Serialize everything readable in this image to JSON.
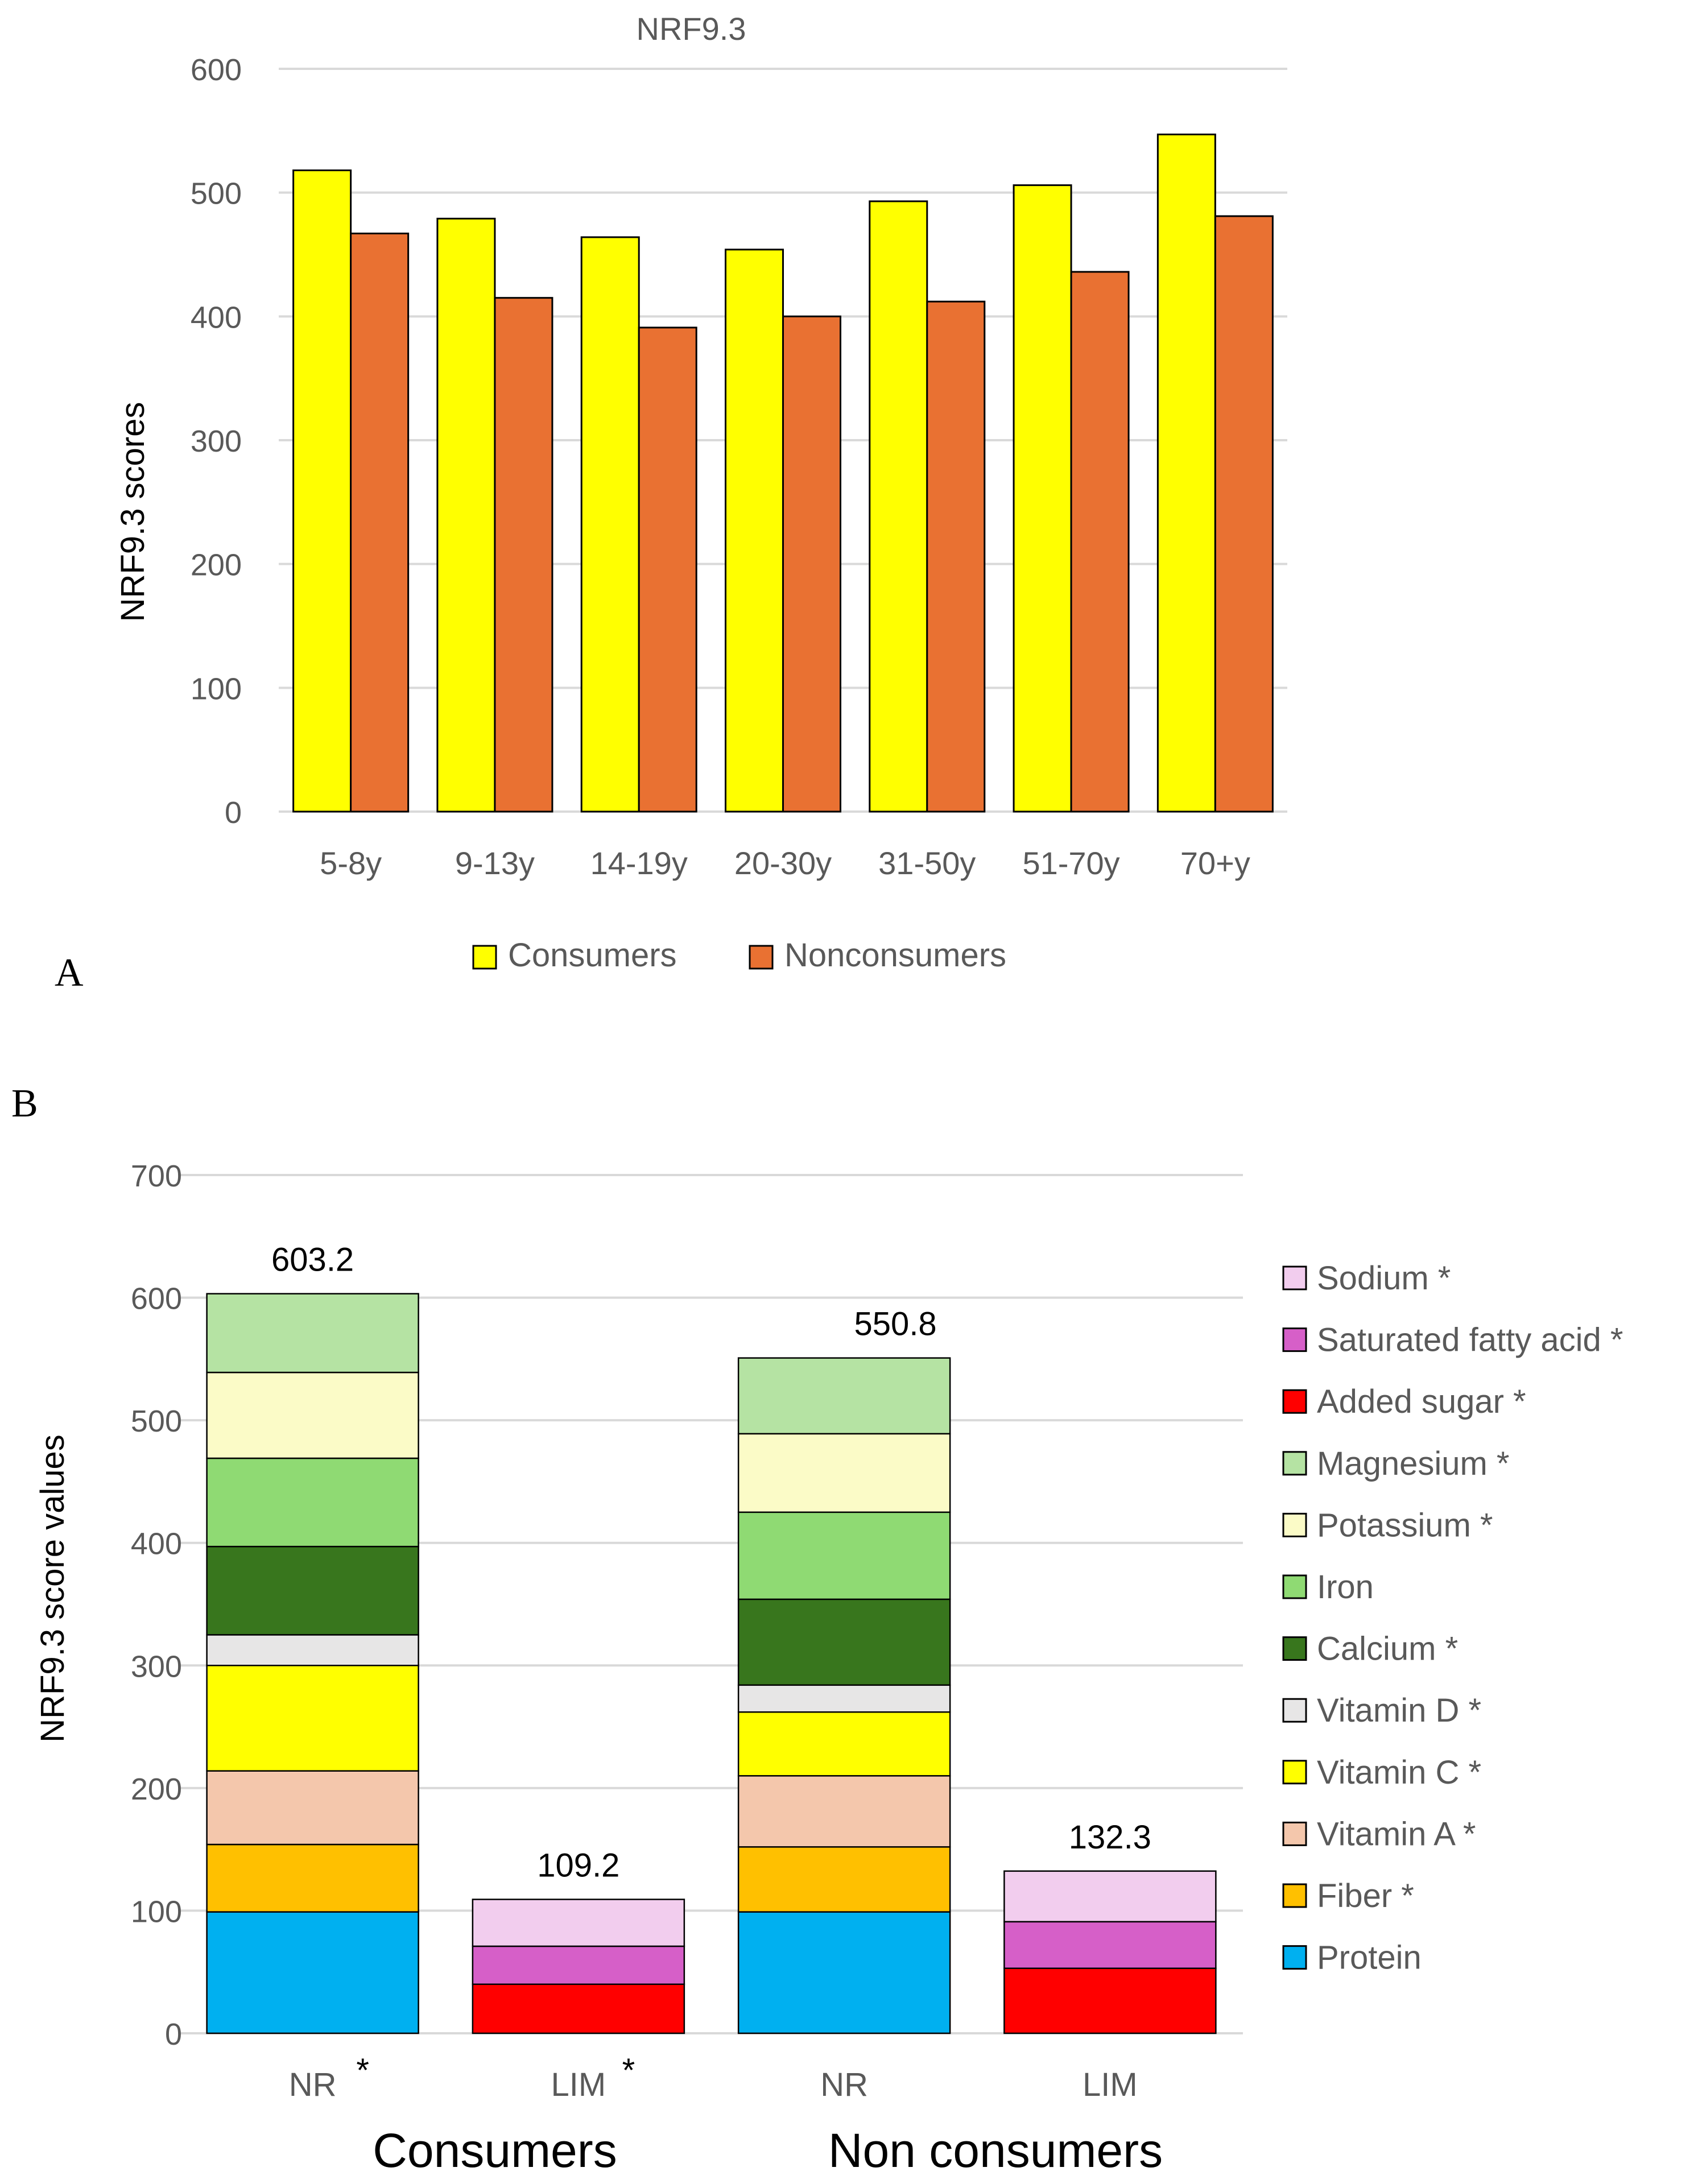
{
  "colors": {
    "consumers": "#ffff00",
    "nonconsumers": "#e97132",
    "gridline": "#d9d9d9",
    "axis_text": "#595959",
    "bar_edge": "#000000"
  },
  "panel_labels": {
    "a": "A",
    "b": "B"
  },
  "chart_data": [
    {
      "type": "bar",
      "title": "NRF9.3",
      "xlabel": "",
      "ylabel": "NRF9.3 scores",
      "ylim": [
        0,
        600
      ],
      "yticks": [
        "0",
        "100",
        "200",
        "300",
        "400",
        "500",
        "600"
      ],
      "grid": true,
      "legend_position": "bottom",
      "categories": [
        "5-8y",
        "9-13y",
        "14-19y",
        "20-30y",
        "31-50y",
        "51-70y",
        "70+y"
      ],
      "series": [
        {
          "name": "Consumers",
          "values": [
            518,
            479,
            464,
            454,
            493,
            506,
            547
          ]
        },
        {
          "name": "Nonconsumers",
          "values": [
            467,
            415,
            391,
            400,
            412,
            436,
            481
          ]
        }
      ]
    },
    {
      "type": "bar",
      "stacked": true,
      "title": "",
      "xlabel": "",
      "ylabel": "NRF9.3 score values",
      "ylim": [
        0,
        700
      ],
      "yticks": [
        "0",
        "100",
        "200",
        "300",
        "400",
        "500",
        "600",
        "700"
      ],
      "grid": true,
      "legend_position": "right",
      "categories": [
        "NR",
        "LIM",
        "NR",
        "LIM"
      ],
      "category_marks": [
        "*",
        "*",
        "",
        ""
      ],
      "groups": [
        "Consumers",
        "Non consumers"
      ],
      "totals": [
        "603.2",
        "109.2",
        "550.8",
        "132.3"
      ],
      "series": [
        {
          "name": "Protein",
          "marker": "",
          "color": "#00b0f0",
          "values": [
            99,
            0,
            99,
            0
          ]
        },
        {
          "name": "Fiber",
          "marker": "*",
          "color": "#ffc000",
          "values": [
            55,
            0,
            53,
            0
          ]
        },
        {
          "name": "Vitamin A",
          "marker": "*",
          "color": "#f4c7ac",
          "values": [
            60,
            0,
            58,
            0
          ]
        },
        {
          "name": "Vitamin C",
          "marker": "*",
          "color": "#ffff00",
          "values": [
            86,
            0,
            52,
            0
          ]
        },
        {
          "name": "Vitamin D",
          "marker": "*",
          "color": "#e7e6e6",
          "values": [
            25,
            0,
            22,
            0
          ]
        },
        {
          "name": "Calcium",
          "marker": "*",
          "color": "#38761d",
          "values": [
            72,
            0,
            70,
            0
          ]
        },
        {
          "name": "Iron",
          "marker": "",
          "color": "#8fda73",
          "values": [
            72,
            0,
            71,
            0
          ]
        },
        {
          "name": "Potassium",
          "marker": "*",
          "color": "#fbfbc7",
          "values": [
            70,
            0,
            64,
            0
          ]
        },
        {
          "name": "Magnesium",
          "marker": "*",
          "color": "#b5e3a3",
          "values": [
            64.2,
            0,
            61.8,
            0
          ]
        },
        {
          "name": "Added sugar",
          "marker": "*",
          "color": "#ff0000",
          "values": [
            0,
            40,
            0,
            53
          ]
        },
        {
          "name": "Saturated fatty acid",
          "marker": "*",
          "color": "#d65fc8",
          "values": [
            0,
            31,
            0,
            38
          ]
        },
        {
          "name": "Sodium",
          "marker": "*",
          "color": "#f2cdee",
          "values": [
            0,
            38.2,
            0,
            41.3
          ]
        }
      ]
    }
  ]
}
